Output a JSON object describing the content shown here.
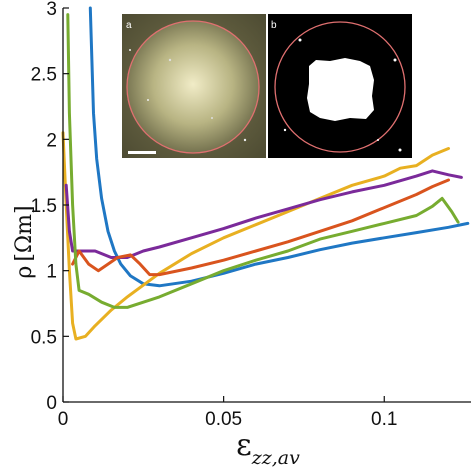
{
  "chart_data": {
    "type": "line",
    "xlabel": "",
    "ylabel": "",
    "xlim": [
      0,
      0.127
    ],
    "ylim": [
      0,
      3
    ],
    "xticks": [
      {
        "value": 0,
        "label": "0"
      },
      {
        "value": 0.05,
        "label": "0.05"
      },
      {
        "value": 0.1,
        "label": "0.1"
      }
    ],
    "yticks": [
      {
        "value": 0,
        "label": "0"
      },
      {
        "value": 0.5,
        "label": "0.5"
      },
      {
        "value": 1,
        "label": "1"
      },
      {
        "value": 1.5,
        "label": "1.5"
      },
      {
        "value": 2,
        "label": "2"
      },
      {
        "value": 2.5,
        "label": "2.5"
      },
      {
        "value": 3,
        "label": "3"
      }
    ],
    "ylabel_parts": {
      "symbol": "ρ",
      "unit": "[Ωm]"
    },
    "xlabel_parts": {
      "symbol": "ε",
      "subscript": "zz,av"
    },
    "grid": false,
    "legend": "none",
    "series": [
      {
        "color": "#1f77c4",
        "points": [
          [
            0.0085,
            3.0
          ],
          [
            0.009,
            2.6
          ],
          [
            0.0095,
            2.2
          ],
          [
            0.0105,
            1.85
          ],
          [
            0.012,
            1.55
          ],
          [
            0.014,
            1.3
          ],
          [
            0.016,
            1.15
          ],
          [
            0.018,
            1.05
          ],
          [
            0.021,
            0.96
          ],
          [
            0.025,
            0.9
          ],
          [
            0.03,
            0.885
          ],
          [
            0.04,
            0.92
          ],
          [
            0.05,
            0.98
          ],
          [
            0.06,
            1.05
          ],
          [
            0.07,
            1.1
          ],
          [
            0.08,
            1.16
          ],
          [
            0.09,
            1.21
          ],
          [
            0.1,
            1.25
          ],
          [
            0.11,
            1.29
          ],
          [
            0.12,
            1.33
          ],
          [
            0.126,
            1.36
          ]
        ]
      },
      {
        "color": "#e8b021",
        "points": [
          [
            0.0,
            2.05
          ],
          [
            0.001,
            1.5
          ],
          [
            0.002,
            1.0
          ],
          [
            0.003,
            0.6
          ],
          [
            0.004,
            0.48
          ],
          [
            0.007,
            0.5
          ],
          [
            0.01,
            0.58
          ],
          [
            0.015,
            0.7
          ],
          [
            0.02,
            0.8
          ],
          [
            0.03,
            0.98
          ],
          [
            0.04,
            1.13
          ],
          [
            0.05,
            1.25
          ],
          [
            0.06,
            1.35
          ],
          [
            0.07,
            1.45
          ],
          [
            0.08,
            1.55
          ],
          [
            0.09,
            1.65
          ],
          [
            0.1,
            1.72
          ],
          [
            0.105,
            1.78
          ],
          [
            0.11,
            1.8
          ],
          [
            0.115,
            1.88
          ],
          [
            0.12,
            1.93
          ]
        ]
      },
      {
        "color": "#7b2a9a",
        "points": [
          [
            0.001,
            1.65
          ],
          [
            0.002,
            1.3
          ],
          [
            0.003,
            1.15
          ],
          [
            0.006,
            1.15
          ],
          [
            0.01,
            1.15
          ],
          [
            0.015,
            1.1
          ],
          [
            0.02,
            1.1
          ],
          [
            0.025,
            1.15
          ],
          [
            0.03,
            1.18
          ],
          [
            0.04,
            1.25
          ],
          [
            0.05,
            1.32
          ],
          [
            0.06,
            1.4
          ],
          [
            0.07,
            1.47
          ],
          [
            0.08,
            1.54
          ],
          [
            0.09,
            1.6
          ],
          [
            0.1,
            1.65
          ],
          [
            0.11,
            1.72
          ],
          [
            0.115,
            1.76
          ],
          [
            0.12,
            1.73
          ],
          [
            0.124,
            1.71
          ]
        ]
      },
      {
        "color": "#d9541e",
        "points": [
          [
            0.003,
            1.05
          ],
          [
            0.004,
            1.1
          ],
          [
            0.005,
            1.15
          ],
          [
            0.008,
            1.05
          ],
          [
            0.011,
            1.0
          ],
          [
            0.014,
            1.05
          ],
          [
            0.017,
            1.1
          ],
          [
            0.021,
            1.12
          ],
          [
            0.024,
            1.05
          ],
          [
            0.027,
            0.97
          ],
          [
            0.03,
            0.97
          ],
          [
            0.04,
            1.02
          ],
          [
            0.05,
            1.08
          ],
          [
            0.06,
            1.15
          ],
          [
            0.07,
            1.22
          ],
          [
            0.08,
            1.3
          ],
          [
            0.09,
            1.38
          ],
          [
            0.1,
            1.48
          ],
          [
            0.11,
            1.58
          ],
          [
            0.115,
            1.64
          ],
          [
            0.12,
            1.69
          ]
        ]
      },
      {
        "color": "#77ac30",
        "points": [
          [
            0.0015,
            2.95
          ],
          [
            0.002,
            2.2
          ],
          [
            0.003,
            1.5
          ],
          [
            0.004,
            1.05
          ],
          [
            0.005,
            0.85
          ],
          [
            0.008,
            0.82
          ],
          [
            0.012,
            0.76
          ],
          [
            0.016,
            0.72
          ],
          [
            0.02,
            0.72
          ],
          [
            0.025,
            0.76
          ],
          [
            0.03,
            0.8
          ],
          [
            0.04,
            0.9
          ],
          [
            0.05,
            1.0
          ],
          [
            0.06,
            1.08
          ],
          [
            0.07,
            1.15
          ],
          [
            0.08,
            1.24
          ],
          [
            0.09,
            1.3
          ],
          [
            0.1,
            1.36
          ],
          [
            0.11,
            1.42
          ],
          [
            0.115,
            1.49
          ],
          [
            0.118,
            1.55
          ],
          [
            0.121,
            1.45
          ],
          [
            0.123,
            1.37
          ]
        ]
      }
    ]
  },
  "insets": [
    {
      "letter": "a"
    },
    {
      "letter": "b"
    }
  ]
}
